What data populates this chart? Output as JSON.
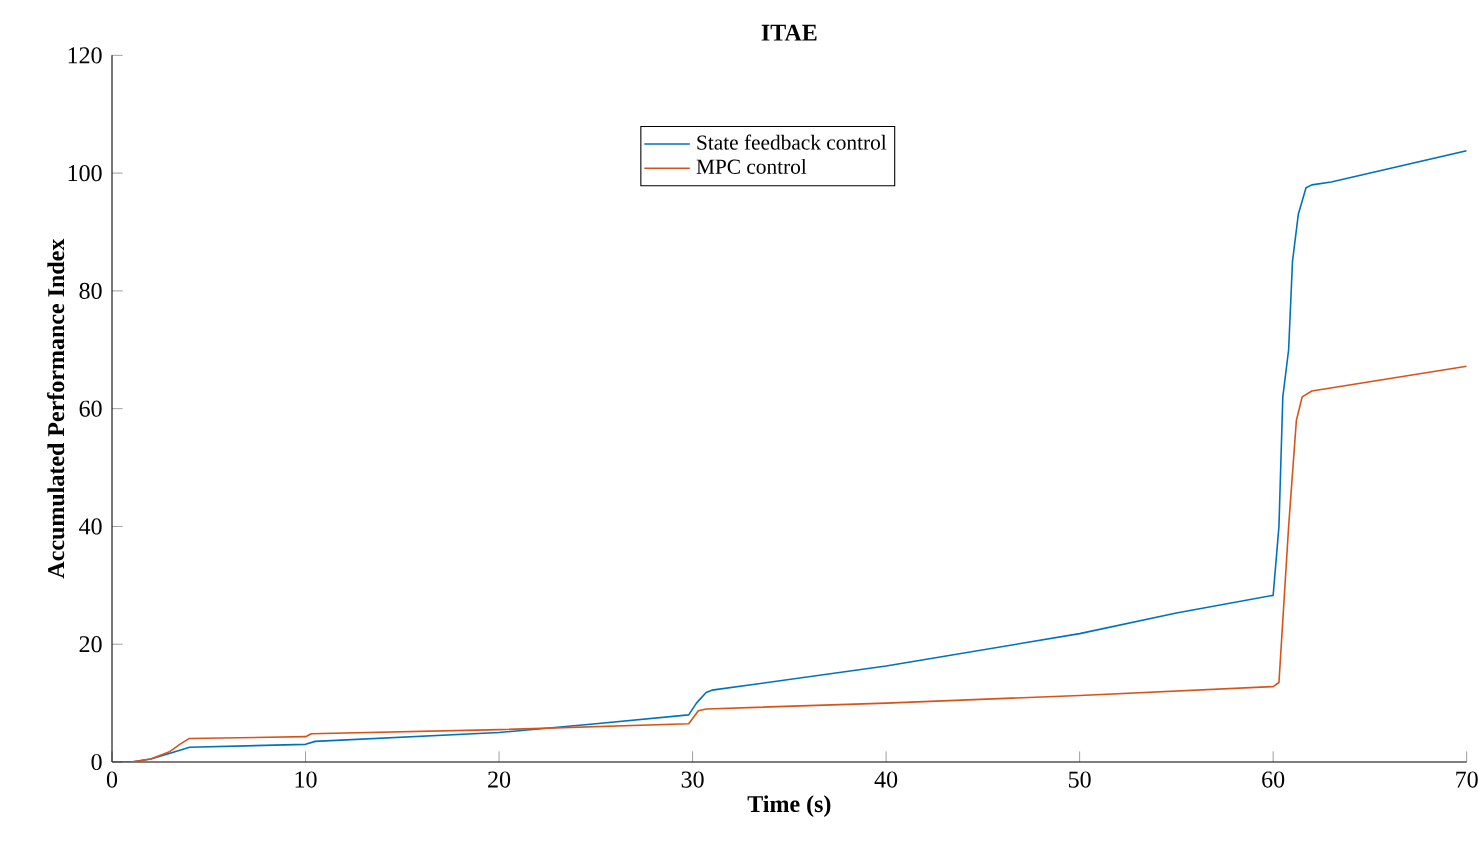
{
  "chart_data": {
    "type": "line",
    "title": "ITAE",
    "xlabel": "Time (s)",
    "ylabel": "Accumulated Performance Index",
    "xlim": [
      0,
      70
    ],
    "ylim": [
      0,
      120
    ],
    "xticks": [
      0,
      10,
      20,
      30,
      40,
      50,
      60,
      70
    ],
    "yticks": [
      0,
      20,
      40,
      60,
      80,
      100,
      120
    ],
    "legend": "top",
    "grid": false,
    "marker": "none",
    "line_style": "solid",
    "series": [
      {
        "name": "State feedback control",
        "color": "#0072bd",
        "x": [
          0,
          1,
          2,
          3,
          3.8,
          4,
          10,
          10.5,
          20,
          25,
          29.8,
          30.2,
          30.7,
          31,
          40,
          50,
          55,
          60,
          60.3,
          60.5,
          60.8,
          61,
          61.3,
          61.7,
          62,
          63,
          70
        ],
        "values": [
          0,
          0,
          0.5,
          1.5,
          2.3,
          2.5,
          3,
          3.5,
          5,
          6.5,
          8,
          10,
          11.8,
          12.2,
          16.3,
          21.8,
          25.3,
          28.3,
          40,
          62,
          70,
          85,
          93,
          97.5,
          98,
          98.5,
          103.8
        ]
      },
      {
        "name": "MPC control",
        "color": "#d95319",
        "x": [
          1,
          2,
          3,
          3.5,
          4,
          10,
          10.3,
          20,
          29.8,
          30.3,
          30.7,
          40,
          50,
          60,
          60.3,
          60.8,
          61.2,
          61.5,
          62,
          70
        ],
        "values": [
          0,
          0.5,
          1.8,
          3,
          4,
          4.3,
          4.8,
          5.5,
          6.5,
          8.7,
          9,
          10,
          11.3,
          12.8,
          13.5,
          40,
          58,
          62,
          63,
          67.2
        ]
      }
    ]
  }
}
